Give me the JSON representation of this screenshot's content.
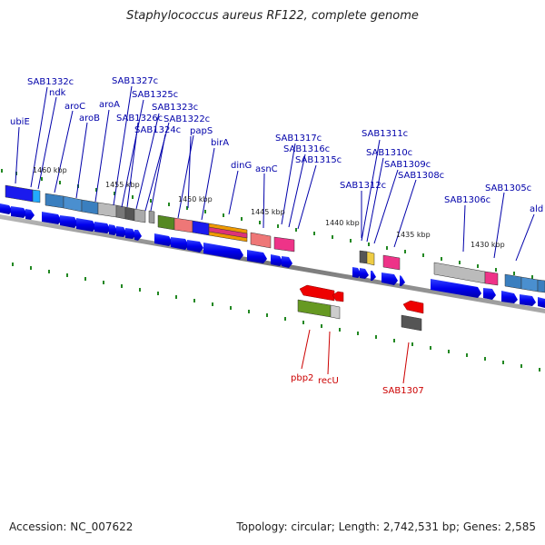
{
  "title": "Staphylococcus aureus RF122, complete genome",
  "accession": "Accession: NC_007622",
  "topology": "Topology: circular; Length: 2,742,531 bp; Genes: 2,585",
  "kbp_labels": {
    "k1460": "1460 kbp",
    "k1455": "1455 kbp",
    "k1450": "1450 kbp",
    "k1445": "1445 kbp",
    "k1440": "1440 kbp",
    "k1435": "1435 kbp",
    "k1430": "1430 kbp"
  },
  "gene_labels": {
    "SAB1332c": "SAB1332c",
    "ndk": "ndk",
    "ubiE": "ubiE",
    "aroC": "aroC",
    "aroB": "aroB",
    "SAB1327c": "SAB1327c",
    "aroA": "aroA",
    "SAB1325c": "SAB1325c",
    "SAB1326c": "SAB1326c",
    "SAB1323c": "SAB1323c",
    "SAB1322c": "SAB1322c",
    "SAB1324c": "SAB1324c",
    "papS": "papS",
    "birA": "birA",
    "dinG": "dinG",
    "asnC": "asnC",
    "SAB1317c": "SAB1317c",
    "SAB1316c": "SAB1316c",
    "SAB1315c": "SAB1315c",
    "SAB1311c": "SAB1311c",
    "SAB1310c": "SAB1310c",
    "SAB1309c": "SAB1309c",
    "SAB1308c": "SAB1308c",
    "SAB1312c": "SAB1312c",
    "SAB1306c": "SAB1306c",
    "SAB1305c": "SAB1305c",
    "ald": "ald",
    "pbp2": "pbp2",
    "recU": "recU",
    "SAB1307": "SAB1307"
  },
  "colors": {
    "label_blue": "#0000aa",
    "label_red": "#cc0000",
    "tick_green": "#228822",
    "arrow_blue": "#0000ee",
    "arrow_red": "#ee0000"
  }
}
